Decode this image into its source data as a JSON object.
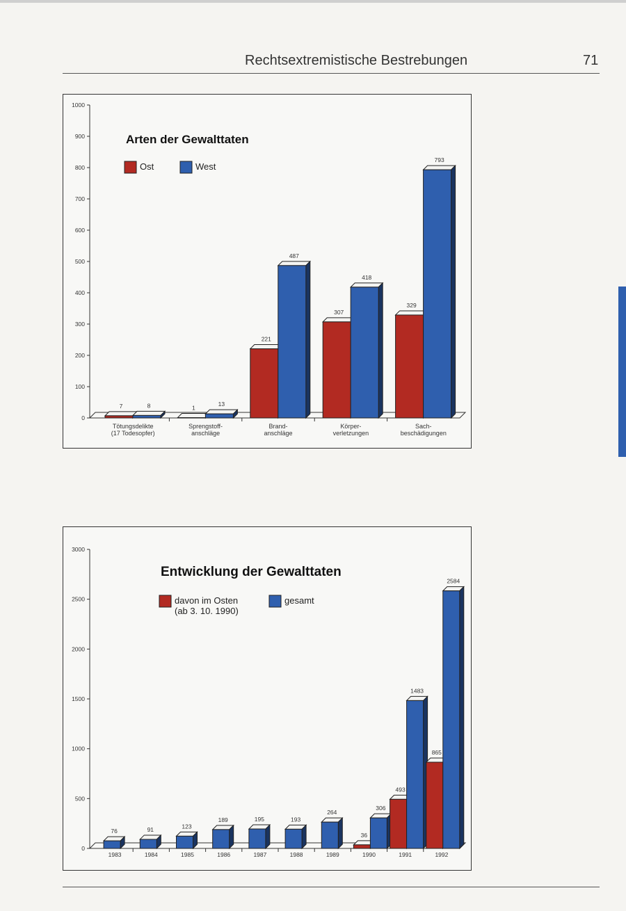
{
  "header": {
    "title": "Rechtsextremistische Bestrebungen",
    "page_number": "71"
  },
  "chart_data": [
    {
      "type": "bar",
      "title": "Arten der Gewalttaten",
      "categories": [
        [
          "Tötungsdelikte",
          "(17 Todesopfer)"
        ],
        [
          "Sprengstoff-",
          "anschläge"
        ],
        [
          "Brand-",
          "anschläge"
        ],
        [
          "Körper-",
          "verletzungen"
        ],
        [
          "Sach-",
          "beschädigungen"
        ]
      ],
      "series": [
        {
          "name": "Ost",
          "values": [
            7,
            1,
            221,
            307,
            329
          ],
          "color": "#b22a22"
        },
        {
          "name": "West",
          "values": [
            8,
            13,
            487,
            418,
            793
          ],
          "color": "#2f5fae"
        }
      ],
      "ylim": [
        0,
        1000
      ],
      "yticks": [
        0,
        100,
        200,
        300,
        400,
        500,
        600,
        700,
        800,
        900,
        1000
      ],
      "legend": [
        "Ost",
        "West"
      ],
      "xlabel": "",
      "ylabel": ""
    },
    {
      "type": "bar",
      "title": "Entwicklung der Gewalttaten",
      "categories": [
        "1983",
        "1984",
        "1985",
        "1986",
        "1987",
        "1988",
        "1989",
        "1990",
        "1991",
        "1992"
      ],
      "series": [
        {
          "name": "davon im Osten (ab 3. 10. 1990)",
          "values": [
            null,
            null,
            null,
            null,
            null,
            null,
            null,
            36,
            493,
            865
          ],
          "color": "#b22a22"
        },
        {
          "name": "gesamt",
          "values": [
            76,
            91,
            123,
            189,
            195,
            193,
            264,
            306,
            1483,
            2584
          ],
          "color": "#2f5fae"
        }
      ],
      "ylim": [
        0,
        3000
      ],
      "yticks": [
        0,
        500,
        1000,
        1500,
        2000,
        2500,
        3000
      ],
      "legend": [
        [
          "davon im Osten",
          "(ab 3. 10. 1990)"
        ],
        "gesamt"
      ],
      "xlabel": "",
      "ylabel": ""
    }
  ]
}
